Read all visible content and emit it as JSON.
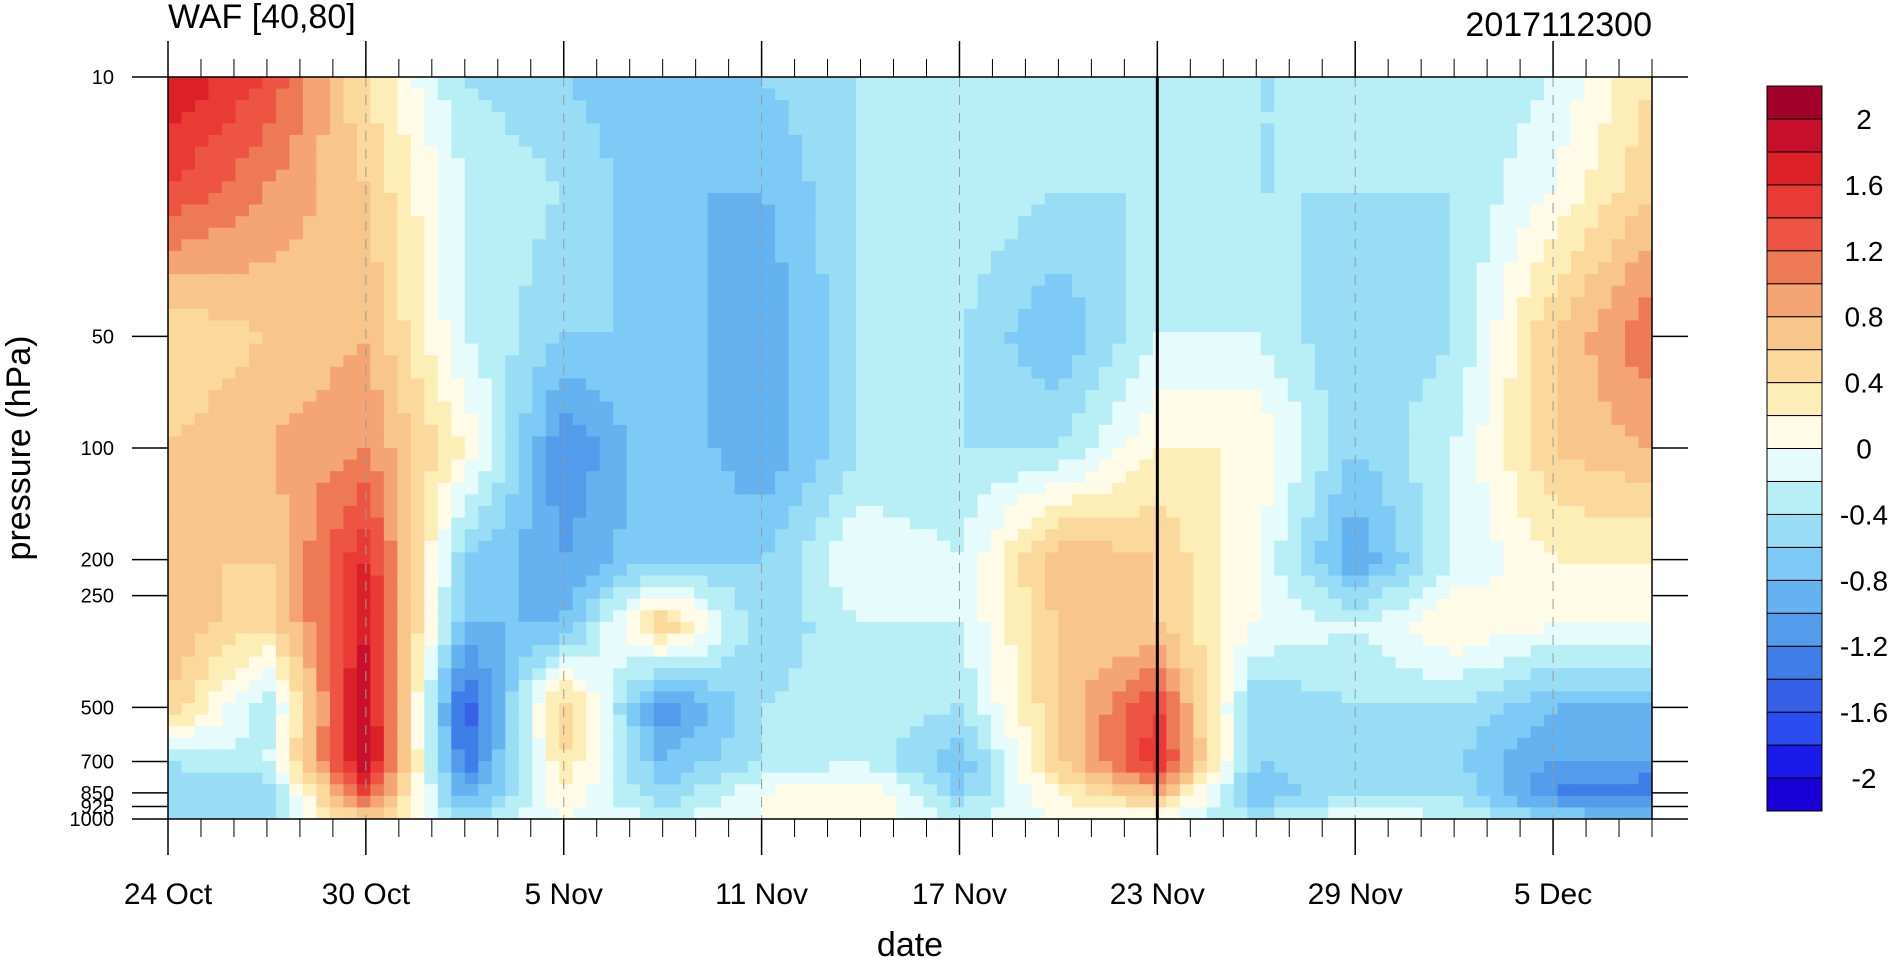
{
  "chart_data": {
    "type": "heatmap",
    "title": "WAF [40,80]",
    "subtitle": "2017112300",
    "xlabel": "date",
    "ylabel": "pressure (hPa)",
    "x_ticks": [
      {
        "date": "2017-10-24",
        "label": "24 Oct"
      },
      {
        "date": "2017-10-30",
        "label": "30 Oct"
      },
      {
        "date": "2017-11-05",
        "label": "5 Nov"
      },
      {
        "date": "2017-11-11",
        "label": "11 Nov"
      },
      {
        "date": "2017-11-17",
        "label": "17 Nov"
      },
      {
        "date": "2017-11-23",
        "label": "23 Nov"
      },
      {
        "date": "2017-11-29",
        "label": "29 Nov"
      },
      {
        "date": "2017-12-05",
        "label": "5 Dec"
      }
    ],
    "xlim": [
      "2017-10-24",
      "2017-12-08"
    ],
    "y_scale": "log",
    "y_ticks": [
      {
        "value": 10,
        "label": "10"
      },
      {
        "value": 50,
        "label": "50"
      },
      {
        "value": 100,
        "label": "100"
      },
      {
        "value": 200,
        "label": "200"
      },
      {
        "value": 250,
        "label": "250"
      },
      {
        "value": 500,
        "label": "500"
      },
      {
        "value": 700,
        "label": "700"
      },
      {
        "value": 850,
        "label": "850"
      },
      {
        "value": 925,
        "label": "925"
      },
      {
        "value": 1000,
        "label": "1000"
      }
    ],
    "ylim": [
      1000,
      10
    ],
    "reference_line": {
      "date": "2017-11-23"
    },
    "colorbar": {
      "levels": [
        -2.2,
        -2.0,
        -1.8,
        -1.6,
        -1.4,
        -1.2,
        -1.0,
        -0.8,
        -0.6,
        -0.4,
        -0.2,
        0,
        0.2,
        0.4,
        0.6,
        0.8,
        1.0,
        1.2,
        1.4,
        1.6,
        1.8,
        2.0,
        2.2
      ],
      "colors": [
        "#1a00d8",
        "#1a1aeb",
        "#2a4cf0",
        "#3660e8",
        "#3f7de8",
        "#529ceb",
        "#64b3f0",
        "#7ccaf5",
        "#98dcf5",
        "#b8eef6",
        "#e6fbfb",
        "#fffbe6",
        "#fdeeb8",
        "#fbd99c",
        "#f8c58a",
        "#f5a474",
        "#ee7a55",
        "#ee5443",
        "#ea3a35",
        "#dc2028",
        "#c8102c",
        "#a0002a"
      ],
      "tick_labels": [
        "2",
        "1.6",
        "1.2",
        "0.8",
        "0.4",
        "0",
        "-0.4",
        "-0.8",
        "-1.2",
        "-1.6",
        "-2"
      ],
      "tick_values": [
        2.0,
        1.6,
        1.2,
        0.8,
        0.4,
        0,
        -0.4,
        -0.8,
        -1.2,
        -1.6,
        -2.0
      ]
    },
    "grid": {
      "dates": [
        "2017-10-24",
        "2017-10-27",
        "2017-10-30",
        "2017-11-02",
        "2017-11-05",
        "2017-11-08",
        "2017-11-11",
        "2017-11-14",
        "2017-11-17",
        "2017-11-20",
        "2017-11-23",
        "2017-11-26",
        "2017-11-29",
        "2017-12-02",
        "2017-12-05",
        "2017-12-08"
      ],
      "pressures": [
        10,
        20,
        50,
        100,
        200,
        300,
        500,
        700,
        850,
        1000
      ],
      "values": [
        [
          1.8,
          1.4,
          0.4,
          -0.4,
          -0.6,
          -0.8,
          -0.6,
          -0.4,
          -0.2,
          -0.4,
          -0.4,
          -0.4,
          -0.4,
          -0.4,
          -0.2,
          0.4
        ],
        [
          1.4,
          1.0,
          0.6,
          -0.2,
          -0.4,
          -0.8,
          -0.8,
          -0.4,
          -0.2,
          -0.4,
          -0.4,
          -0.4,
          -0.4,
          -0.4,
          0.0,
          0.6
        ],
        [
          0.4,
          0.6,
          0.8,
          -0.2,
          -0.6,
          -0.6,
          -1.0,
          -0.4,
          -0.4,
          -0.8,
          -0.2,
          -0.2,
          -0.6,
          -0.4,
          0.6,
          1.2
        ],
        [
          0.6,
          0.8,
          1.0,
          0.2,
          -1.2,
          -0.6,
          -1.0,
          -0.4,
          -0.4,
          -0.4,
          0.2,
          0.2,
          -0.6,
          -0.2,
          0.6,
          0.8
        ],
        [
          0.6,
          0.6,
          1.6,
          -0.6,
          -1.0,
          -0.6,
          -0.6,
          0.0,
          -0.2,
          0.8,
          0.6,
          0.0,
          -1.0,
          -0.2,
          0.2,
          0.2
        ],
        [
          0.8,
          0.4,
          1.8,
          -0.8,
          -0.8,
          0.6,
          -0.6,
          -0.2,
          -0.2,
          0.6,
          0.6,
          0.0,
          -0.2,
          0.2,
          0.0,
          0.0
        ],
        [
          0.6,
          -0.4,
          2.0,
          -1.6,
          0.6,
          -1.2,
          -0.4,
          -0.2,
          -0.4,
          0.6,
          1.4,
          -0.6,
          -0.4,
          -0.4,
          -0.8,
          -0.8
        ],
        [
          -0.4,
          -0.2,
          2.0,
          -1.4,
          0.4,
          -0.8,
          -0.4,
          -0.2,
          -0.8,
          0.6,
          1.6,
          -0.6,
          -0.4,
          -0.6,
          -1.0,
          -1.0
        ],
        [
          -0.6,
          -0.6,
          1.4,
          -1.0,
          0.2,
          -0.6,
          0.0,
          0.2,
          -0.6,
          0.2,
          0.8,
          -0.8,
          -0.4,
          -0.4,
          -1.2,
          -1.4
        ],
        [
          -0.4,
          -0.4,
          0.6,
          -0.4,
          0.0,
          -0.2,
          0.0,
          0.2,
          -0.2,
          0.0,
          0.0,
          -0.4,
          0.0,
          -0.2,
          -0.6,
          -0.8
        ]
      ]
    }
  }
}
